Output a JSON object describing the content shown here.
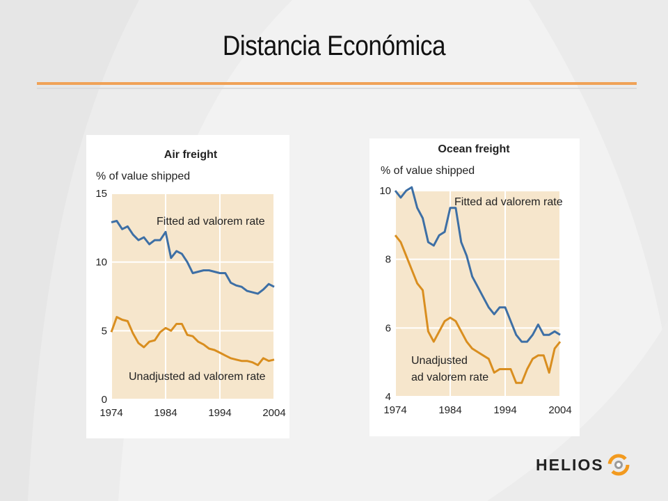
{
  "slide": {
    "title": "Distancia Económica",
    "accent_color": "#f0a257",
    "logo": {
      "text": "HELIOS",
      "icon": "helios-swirl-icon",
      "colors": [
        "#f29a1f",
        "#9b9b9b"
      ]
    }
  },
  "chart_data": [
    {
      "type": "line",
      "title": "Air freight",
      "ylabel": "% of value shipped",
      "xlabel": "",
      "xlim": [
        1974,
        2004
      ],
      "ylim": [
        0,
        15
      ],
      "xticks": [
        1974,
        1984,
        1994,
        2004
      ],
      "yticks": [
        0,
        5,
        10,
        15
      ],
      "grid": true,
      "background": "#f6e6cc",
      "x": [
        1974,
        1975,
        1976,
        1977,
        1978,
        1979,
        1980,
        1981,
        1982,
        1983,
        1984,
        1985,
        1986,
        1987,
        1988,
        1989,
        1990,
        1991,
        1992,
        1993,
        1994,
        1995,
        1996,
        1997,
        1998,
        1999,
        2000,
        2001,
        2002,
        2003,
        2004
      ],
      "series": [
        {
          "name": "Fitted ad valorem rate",
          "color": "#3d6fa5",
          "values": [
            12.9,
            13.0,
            12.4,
            12.6,
            12.0,
            11.6,
            11.8,
            11.3,
            11.6,
            11.6,
            12.2,
            10.3,
            10.8,
            10.6,
            10.0,
            9.2,
            9.3,
            9.4,
            9.4,
            9.3,
            9.2,
            9.2,
            8.5,
            8.3,
            8.2,
            7.9,
            7.8,
            7.7,
            8.0,
            8.4,
            8.2
          ]
        },
        {
          "name": "Unadjusted ad valorem rate",
          "color": "#d98e1f",
          "values": [
            4.9,
            6.0,
            5.8,
            5.7,
            4.8,
            4.1,
            3.8,
            4.2,
            4.3,
            4.9,
            5.2,
            5.0,
            5.5,
            5.5,
            4.7,
            4.6,
            4.2,
            4.0,
            3.7,
            3.6,
            3.4,
            3.2,
            3.0,
            2.9,
            2.8,
            2.8,
            2.7,
            2.5,
            3.0,
            2.8,
            2.9
          ]
        }
      ]
    },
    {
      "type": "line",
      "title": "Ocean freight",
      "ylabel": "% of value shipped",
      "xlabel": "",
      "xlim": [
        1974,
        2004
      ],
      "ylim": [
        4,
        10
      ],
      "xticks": [
        1974,
        1984,
        1994,
        2004
      ],
      "yticks": [
        4,
        6,
        8,
        10
      ],
      "grid": true,
      "background": "#f6e6cc",
      "x": [
        1974,
        1975,
        1976,
        1977,
        1978,
        1979,
        1980,
        1981,
        1982,
        1983,
        1984,
        1985,
        1986,
        1987,
        1988,
        1989,
        1990,
        1991,
        1992,
        1993,
        1994,
        1995,
        1996,
        1997,
        1998,
        1999,
        2000,
        2001,
        2002,
        2003,
        2004
      ],
      "series": [
        {
          "name": "Fitted ad valorem rate",
          "color": "#3d6fa5",
          "values": [
            10.0,
            9.8,
            10.0,
            10.1,
            9.5,
            9.2,
            8.5,
            8.4,
            8.7,
            8.8,
            9.5,
            9.5,
            8.5,
            8.1,
            7.5,
            7.2,
            6.9,
            6.6,
            6.4,
            6.6,
            6.6,
            6.2,
            5.8,
            5.6,
            5.6,
            5.8,
            6.1,
            5.8,
            5.8,
            5.9,
            5.8
          ]
        },
        {
          "name": "Unadjusted ad valorem rate",
          "color": "#d98e1f",
          "values": [
            8.7,
            8.5,
            8.1,
            7.7,
            7.3,
            7.1,
            5.9,
            5.6,
            5.9,
            6.2,
            6.3,
            6.2,
            5.9,
            5.6,
            5.4,
            5.3,
            5.2,
            5.1,
            4.7,
            4.8,
            4.8,
            4.8,
            4.4,
            4.4,
            4.8,
            5.1,
            5.2,
            5.2,
            4.7,
            5.4,
            5.6
          ]
        }
      ]
    }
  ]
}
